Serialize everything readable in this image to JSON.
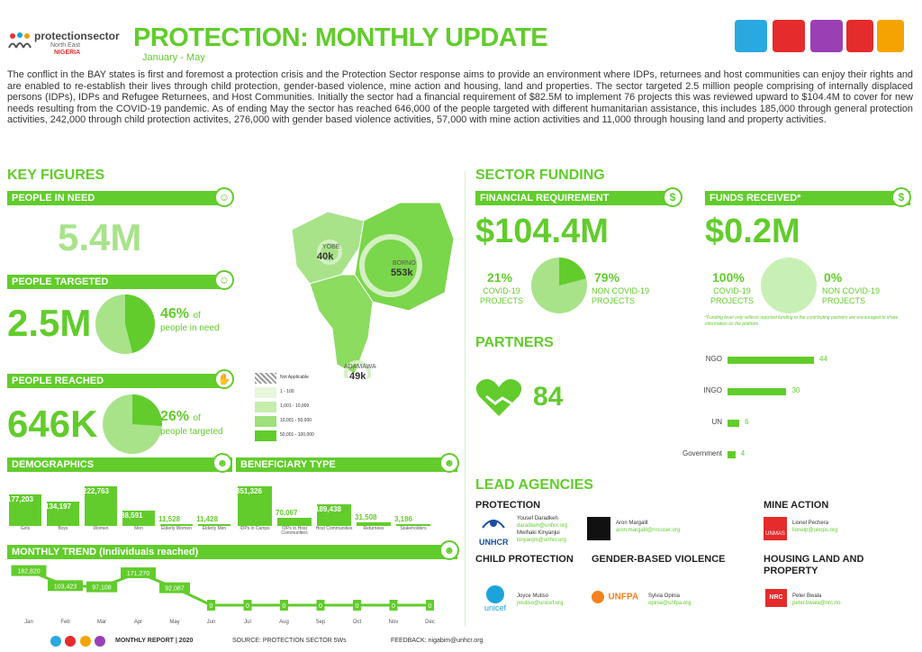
{
  "header": {
    "logo_name": "protectionsector",
    "logo_sub1": "North East",
    "logo_sub2": "NIGERIA",
    "title": "PROTECTION: MONTHLY UPDATE",
    "period": "January - May"
  },
  "intro": "The conflict in the BAY states is first and foremost a protection crisis and the Protection Sector response aims to provide an environment where IDPs, returnees and host communities can enjoy their rights and are enabled to re-establish their lives through child protection, gender-based violence, mine action and housing, land and properties. The sector targeted 2.5 million people comprising of internally displaced persons (IDPs), IDPs and Refugee Returnees, and Host Communities. Initially the sector had a financial requirement of $82.5M to implement 76 projects this was reviewed upward to $104.4M to cover for new needs resulting from the COVID-19 pandemic. As of ending May the sector has reached 646,000 of the people targeted with different humanitarian assistance, this includes 185,000 through general protection activities, 242,000 through child protection activites, 276,000 with gender based violence activities, 57,000 with mine action activities and 11,000 through housing land and property activities.",
  "key_figures": {
    "title": "KEY FIGURES",
    "pin_label": "PEOPLE IN NEED",
    "pin_value": "5.4M",
    "targeted_label": "PEOPLE TARGETED",
    "targeted_value": "2.5M",
    "targeted_pct": "46%",
    "targeted_of": "of",
    "targeted_note": "people in need",
    "targeted_fraction": 0.46,
    "reached_label": "PEOPLE REACHED",
    "reached_value": "646K",
    "reached_pct": "26%",
    "reached_of": "of",
    "reached_note": "people targeted",
    "reached_fraction": 0.26
  },
  "map": {
    "yobe": "YOBE",
    "yobe_val": "40k",
    "borno": "BORNO",
    "borno_val": "553k",
    "adamawa": "ADAMAWA",
    "adamawa_val": "49k",
    "legend": [
      "Not Applicable",
      "1 - 100",
      "1,001 - 10,000",
      "10,001 - 50,000",
      "50,001 - 100,000"
    ]
  },
  "funding": {
    "title": "SECTOR FUNDING",
    "req_label": "FINANCIAL REQUIREMENT",
    "req_value": "$104.4M",
    "req_pct1": "21%",
    "req_lbl1": "COVID-19 PROJECTS",
    "req_pct2": "79%",
    "req_lbl2": "NON COVID-19 PROJECTS",
    "req_fraction": 0.21,
    "rec_label": "FUNDS RECEIVED*",
    "rec_value": "$0.2M",
    "rec_pct1": "100%",
    "rec_lbl1": "COVID-19 PROJECTS",
    "rec_pct2": "0%",
    "rec_lbl2": "NON COVID-19 PROJECTS",
    "rec_note": "*Funding level only reflects reported funding to the contributing partners are encouraged to share information on the platform"
  },
  "partners": {
    "title": "PARTNERS",
    "total": "84",
    "items": [
      {
        "label": "NGO",
        "value": 44
      },
      {
        "label": "INGO",
        "value": 30
      },
      {
        "label": "UN",
        "value": 6
      },
      {
        "label": "Government",
        "value": 4
      }
    ]
  },
  "demographics": {
    "title": "DEMOGRAPHICS",
    "items": [
      {
        "label": "Girls",
        "value": 177203,
        "text": "177,203"
      },
      {
        "label": "Boys",
        "value": 134197,
        "text": "134,197"
      },
      {
        "label": "Women",
        "value": 222763,
        "text": "222,763"
      },
      {
        "label": "Men",
        "value": 88591,
        "text": "88,591"
      },
      {
        "label": "Elderly Women",
        "value": 11528,
        "text": "11,528"
      },
      {
        "label": "Elderly Men",
        "value": 11428,
        "text": "11,428"
      }
    ]
  },
  "beneficiary": {
    "title": "BENEFICIARY TYPE",
    "items": [
      {
        "label": "IDPs in Camps",
        "value": 351326,
        "text": "351,326"
      },
      {
        "label": "IDPs in Host Communities",
        "value": 70067,
        "text": "70,067"
      },
      {
        "label": "Host Communities",
        "value": 189438,
        "text": "189,438"
      },
      {
        "label": "Returnees",
        "value": 31508,
        "text": "31,508"
      },
      {
        "label": "Stakeholders",
        "value": 3186,
        "text": "3,186"
      }
    ]
  },
  "trend": {
    "title": "MONTHLY TREND (Individuals reached)",
    "months": [
      "Jan",
      "Feb",
      "Mar",
      "Apr",
      "May",
      "Jun",
      "Jul",
      "Aug",
      "Sep",
      "Oct",
      "Nov",
      "Dec"
    ],
    "values": [
      182820,
      103423,
      97108,
      171270,
      92087,
      0,
      0,
      0,
      0,
      0,
      0,
      0
    ],
    "labels": [
      "182,820",
      "103,423",
      "97,108",
      "171,270",
      "92,087",
      "0",
      "0",
      "0",
      "0",
      "0",
      "0",
      "0"
    ]
  },
  "lead": {
    "title": "LEAD AGENCIES",
    "protection": "PROTECTION",
    "p_name1": "Yousef Daradkeh",
    "p_mail1": "daradkeh@unhcr.org",
    "p_name2": "Mwihaki Kinyanjui",
    "p_mail2": "kinyanjm@unhcr.org",
    "p_org": "UNHCR",
    "p_name3": "Aron Margalit",
    "p_mail3": "aron.margalit@nrcuser.org",
    "mine": "MINE ACTION",
    "m_name": "Lionel Pechera",
    "m_mail": "lionelp@unops.org",
    "m_org": "UNMAS",
    "cp": "CHILD PROTECTION",
    "cp_name": "Joyce Mutiso",
    "cp_mail": "jmutiso@unicef.org",
    "cp_org": "unicef",
    "gbv": "GENDER-BASED VIOLENCE",
    "gbv_name": "Sylvia Opinia",
    "gbv_mail": "opinia@unfpa.org",
    "gbv_org": "UNFPA",
    "hlp": "HOUSING LAND AND PROPERTY",
    "hlp_name": "Peter Bwala",
    "hlp_mail": "peter.bwala@nrc.no",
    "hlp_org": "NRC"
  },
  "footer": {
    "report": "MONTHLY REPORT | 2020",
    "source": "SOURCE: PROTECTION SECTOR 5Ws",
    "feedback": "FEEDBACK: nigabim@unhcr.org"
  },
  "colors": {
    "accent": "#62cc2c",
    "light": "#a8e38a"
  }
}
